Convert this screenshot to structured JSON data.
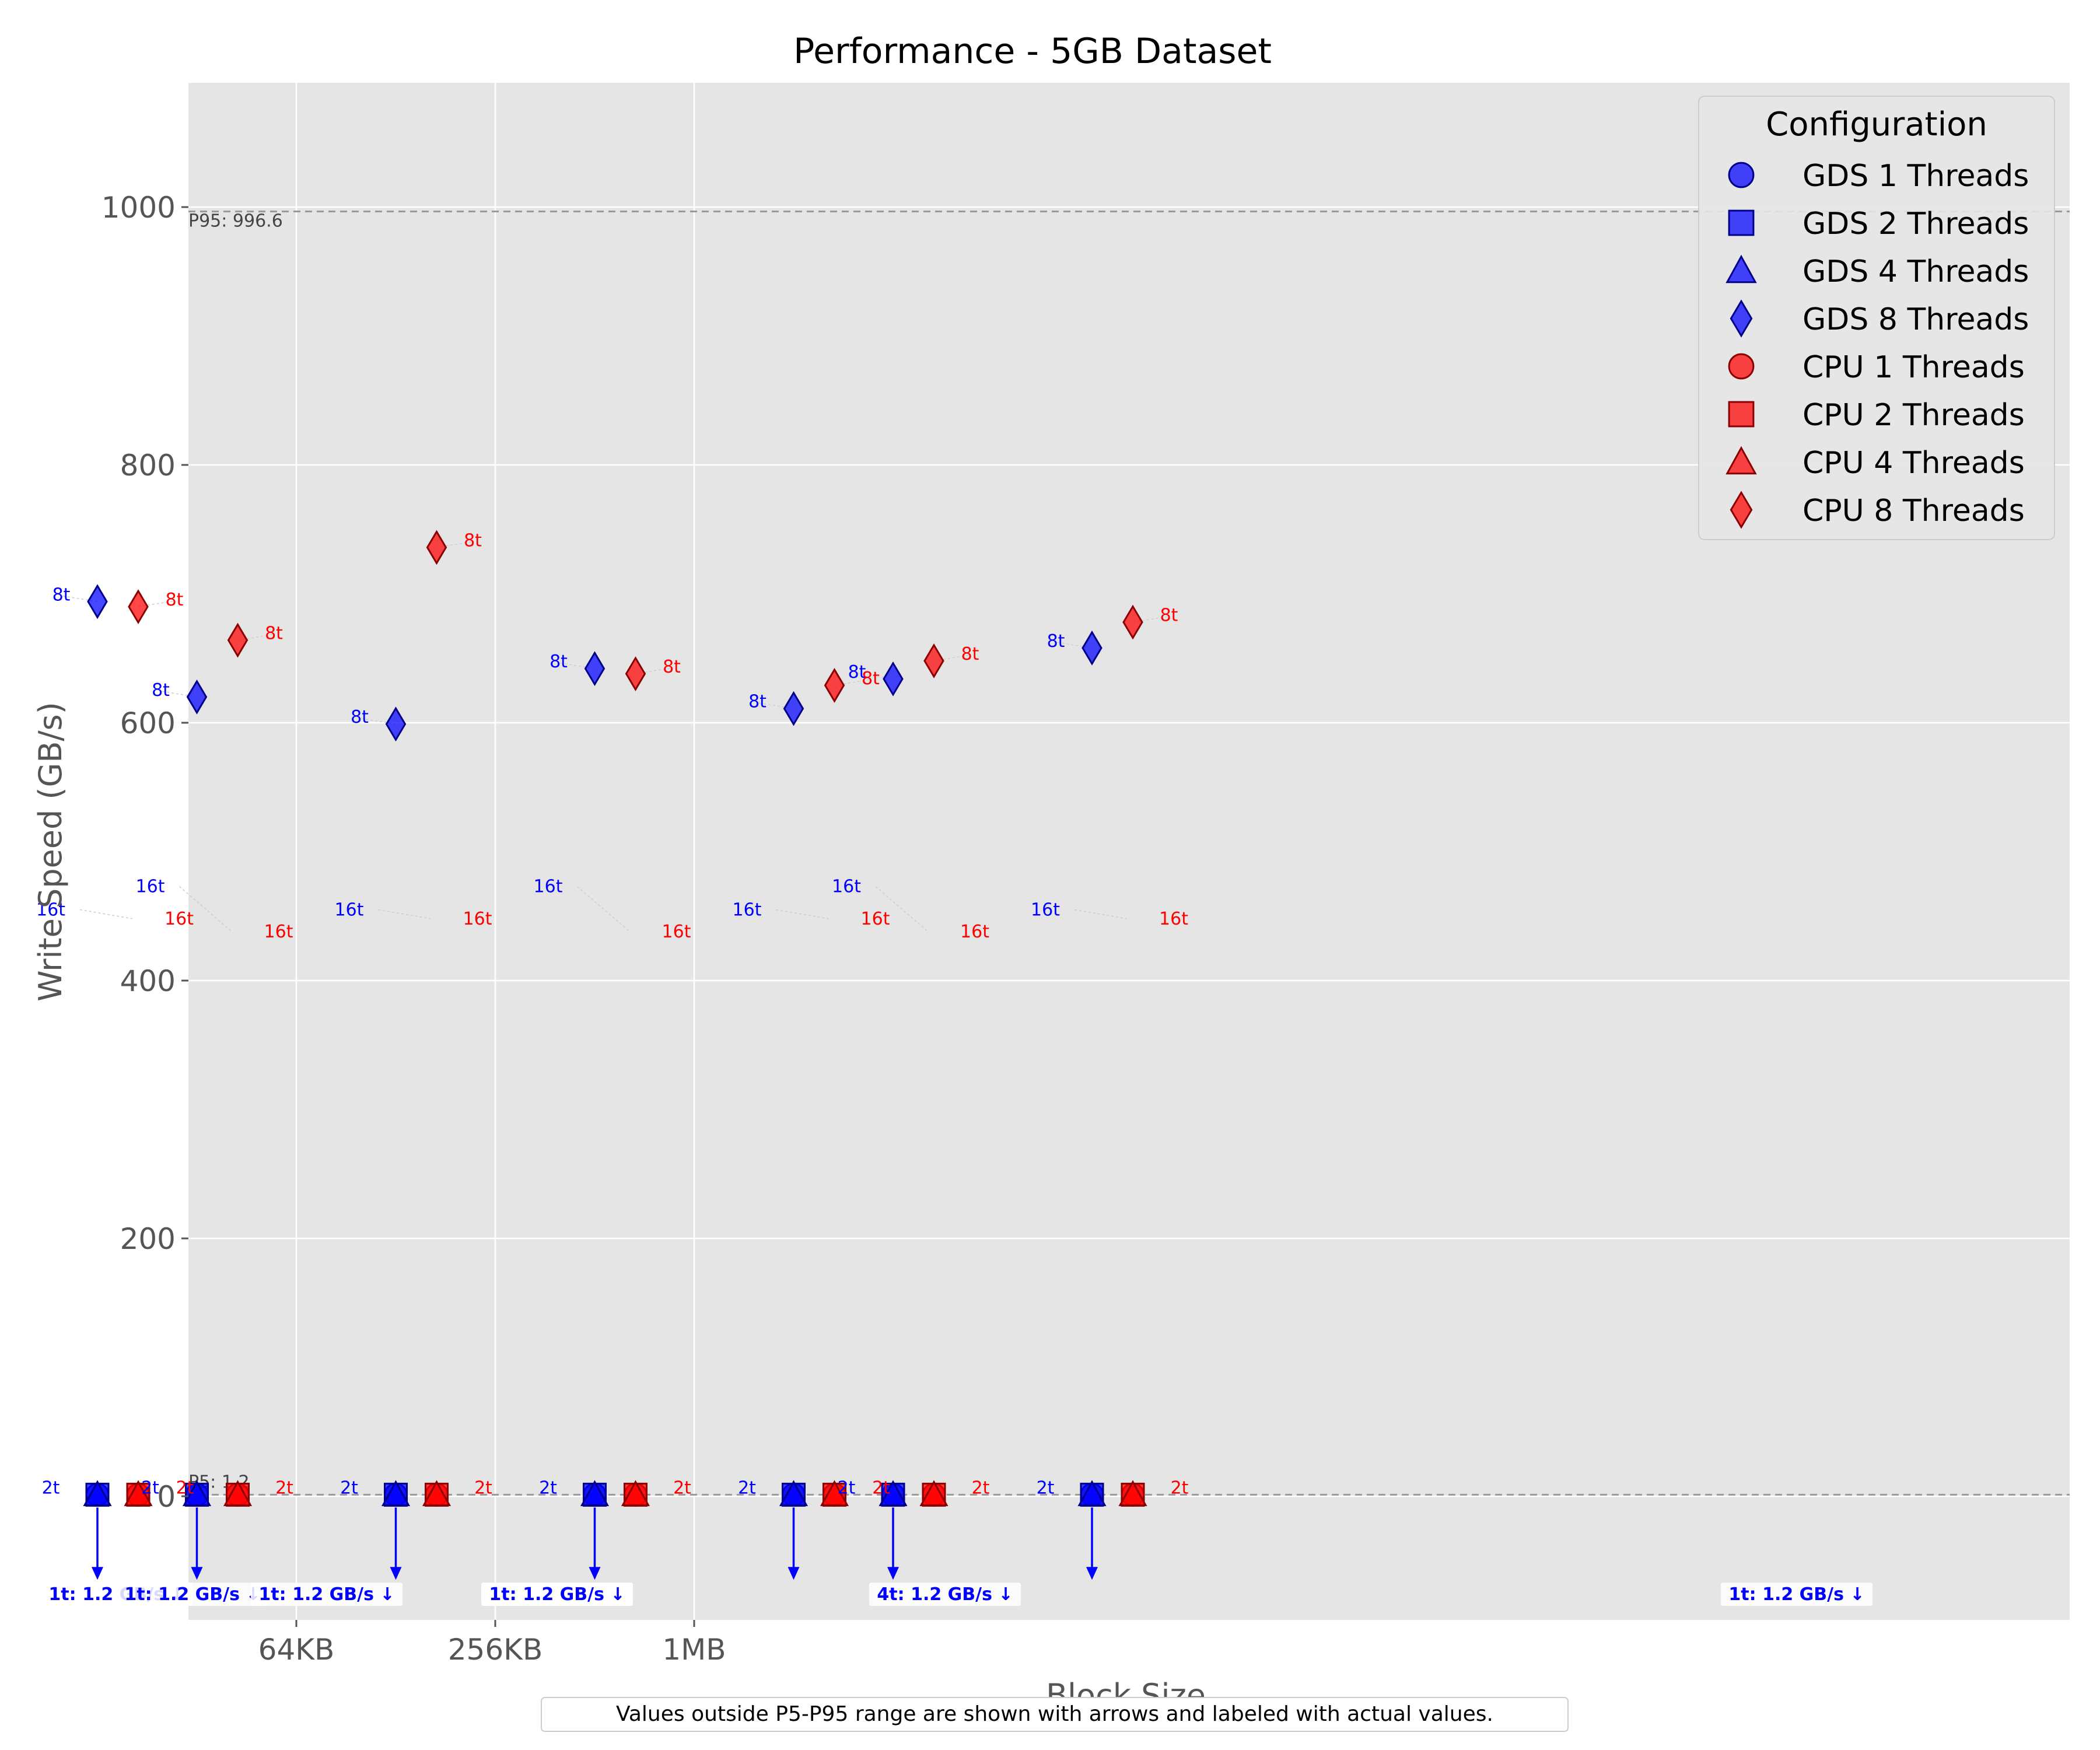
{
  "chart_data": {
    "type": "scatter",
    "title": "Performance - 5GB Dataset",
    "xlabel": "Block Size",
    "ylabel": "Write Speed (GB/s)",
    "ylim": [
      -100,
      1100
    ],
    "grid": true,
    "legend": {
      "title": "Configuration",
      "placement": "top-right",
      "entries": [
        {
          "label": "GDS 1 Threads",
          "marker": "circle",
          "color": "#0000ff"
        },
        {
          "label": "GDS 2 Threads",
          "marker": "square",
          "color": "#0000ff"
        },
        {
          "label": "GDS 4 Threads",
          "marker": "triangle",
          "color": "#0000ff"
        },
        {
          "label": "GDS 8 Threads",
          "marker": "diamond",
          "color": "#0000ff"
        },
        {
          "label": "CPU 1 Threads",
          "marker": "circle",
          "color": "#ff0000"
        },
        {
          "label": "CPU 2 Threads",
          "marker": "square",
          "color": "#ff0000"
        },
        {
          "label": "CPU 4 Threads",
          "marker": "triangle",
          "color": "#ff0000"
        },
        {
          "label": "CPU 8 Threads",
          "marker": "diamond",
          "color": "#ff0000"
        }
      ]
    },
    "x_ticks": [
      {
        "label": "64KB",
        "x": 64
      },
      {
        "label": "256KB",
        "x": 256
      },
      {
        "label": "1MB",
        "x": 1024
      }
    ],
    "y_ticks": [
      0,
      200,
      400,
      600,
      800,
      1000
    ],
    "reference_lines": [
      {
        "label": "P95: 996.6",
        "y": 996.6
      },
      {
        "label": "P5: 1.2",
        "y": 1.2
      }
    ],
    "series": [
      {
        "name": "GDS 1 Threads",
        "marker": "circle",
        "color": "#0000ff",
        "x": [
          16,
          32,
          128,
          512,
          2048,
          4096,
          16384
        ],
        "y": [
          1.2,
          1.2,
          1.2,
          1.2,
          1.2,
          1.2,
          1.2
        ]
      },
      {
        "name": "GDS 2 Threads",
        "marker": "square",
        "color": "#0000ff",
        "x": [
          16,
          32,
          128,
          512,
          2048,
          4096,
          16384
        ],
        "y": [
          1.2,
          1.2,
          1.2,
          1.2,
          1.2,
          1.2,
          1.2
        ]
      },
      {
        "name": "GDS 4 Threads",
        "marker": "triangle",
        "color": "#0000ff",
        "x": [
          16,
          32,
          128,
          512,
          2048,
          4096,
          16384
        ],
        "y": [
          1.2,
          1.2,
          1.2,
          1.2,
          1.2,
          1.2,
          1.2
        ]
      },
      {
        "name": "GDS 8 Threads",
        "marker": "diamond",
        "color": "#0000ff",
        "x": [
          16,
          32,
          128,
          512,
          2048,
          4096,
          16384
        ],
        "y": [
          694,
          620,
          599,
          642,
          611,
          634,
          658
        ]
      },
      {
        "name": "CPU 1 Threads",
        "marker": "circle",
        "color": "#ff0000",
        "x": [
          16,
          32,
          128,
          512,
          2048,
          4096,
          16384
        ],
        "y": [
          1.2,
          1.2,
          1.2,
          1.2,
          1.2,
          1.2,
          1.2
        ]
      },
      {
        "name": "CPU 2 Threads",
        "marker": "square",
        "color": "#ff0000",
        "x": [
          16,
          32,
          128,
          512,
          2048,
          4096,
          16384
        ],
        "y": [
          1.2,
          1.2,
          1.2,
          1.2,
          1.2,
          1.2,
          1.2
        ]
      },
      {
        "name": "CPU 4 Threads",
        "marker": "triangle",
        "color": "#ff0000",
        "x": [
          16,
          32,
          128,
          512,
          2048,
          4096,
          16384
        ],
        "y": [
          1.2,
          1.2,
          1.2,
          1.2,
          1.2,
          1.2,
          1.2
        ]
      },
      {
        "name": "CPU 8 Threads",
        "marker": "diamond",
        "color": "#ff0000",
        "x": [
          16,
          32,
          128,
          512,
          2048,
          4096,
          16384
        ],
        "y": [
          690,
          664,
          736,
          638,
          629,
          648,
          678
        ]
      }
    ],
    "point_labels": [
      {
        "text": "8t",
        "color": "#0000ff"
      },
      {
        "text": "8t",
        "color": "#ff0000"
      },
      {
        "text": "16t",
        "color": "#0000ff"
      },
      {
        "text": "16t",
        "color": "#ff0000"
      },
      {
        "text": "2t",
        "color": "#0000ff"
      },
      {
        "text": "4t",
        "color": "#0000ff"
      },
      {
        "text": "2t",
        "color": "#ff0000"
      },
      {
        "text": "1t",
        "color": "#ff0000"
      }
    ],
    "outlier_labels": [
      "1t: 1.2 GB/s ↓",
      "1t: 1.2 GB/s ↓",
      "1t: 1.2 GB/s ↓",
      "1t: 1.2 GB/s ↓",
      "1t: 1.2 GB/s ↓",
      "4t: 1.2 GB/s ↓",
      "1t: 1.2 GB/s ↓"
    ],
    "footnote": "Values outside P5-P95 range are shown with arrows and labeled with actual values."
  }
}
